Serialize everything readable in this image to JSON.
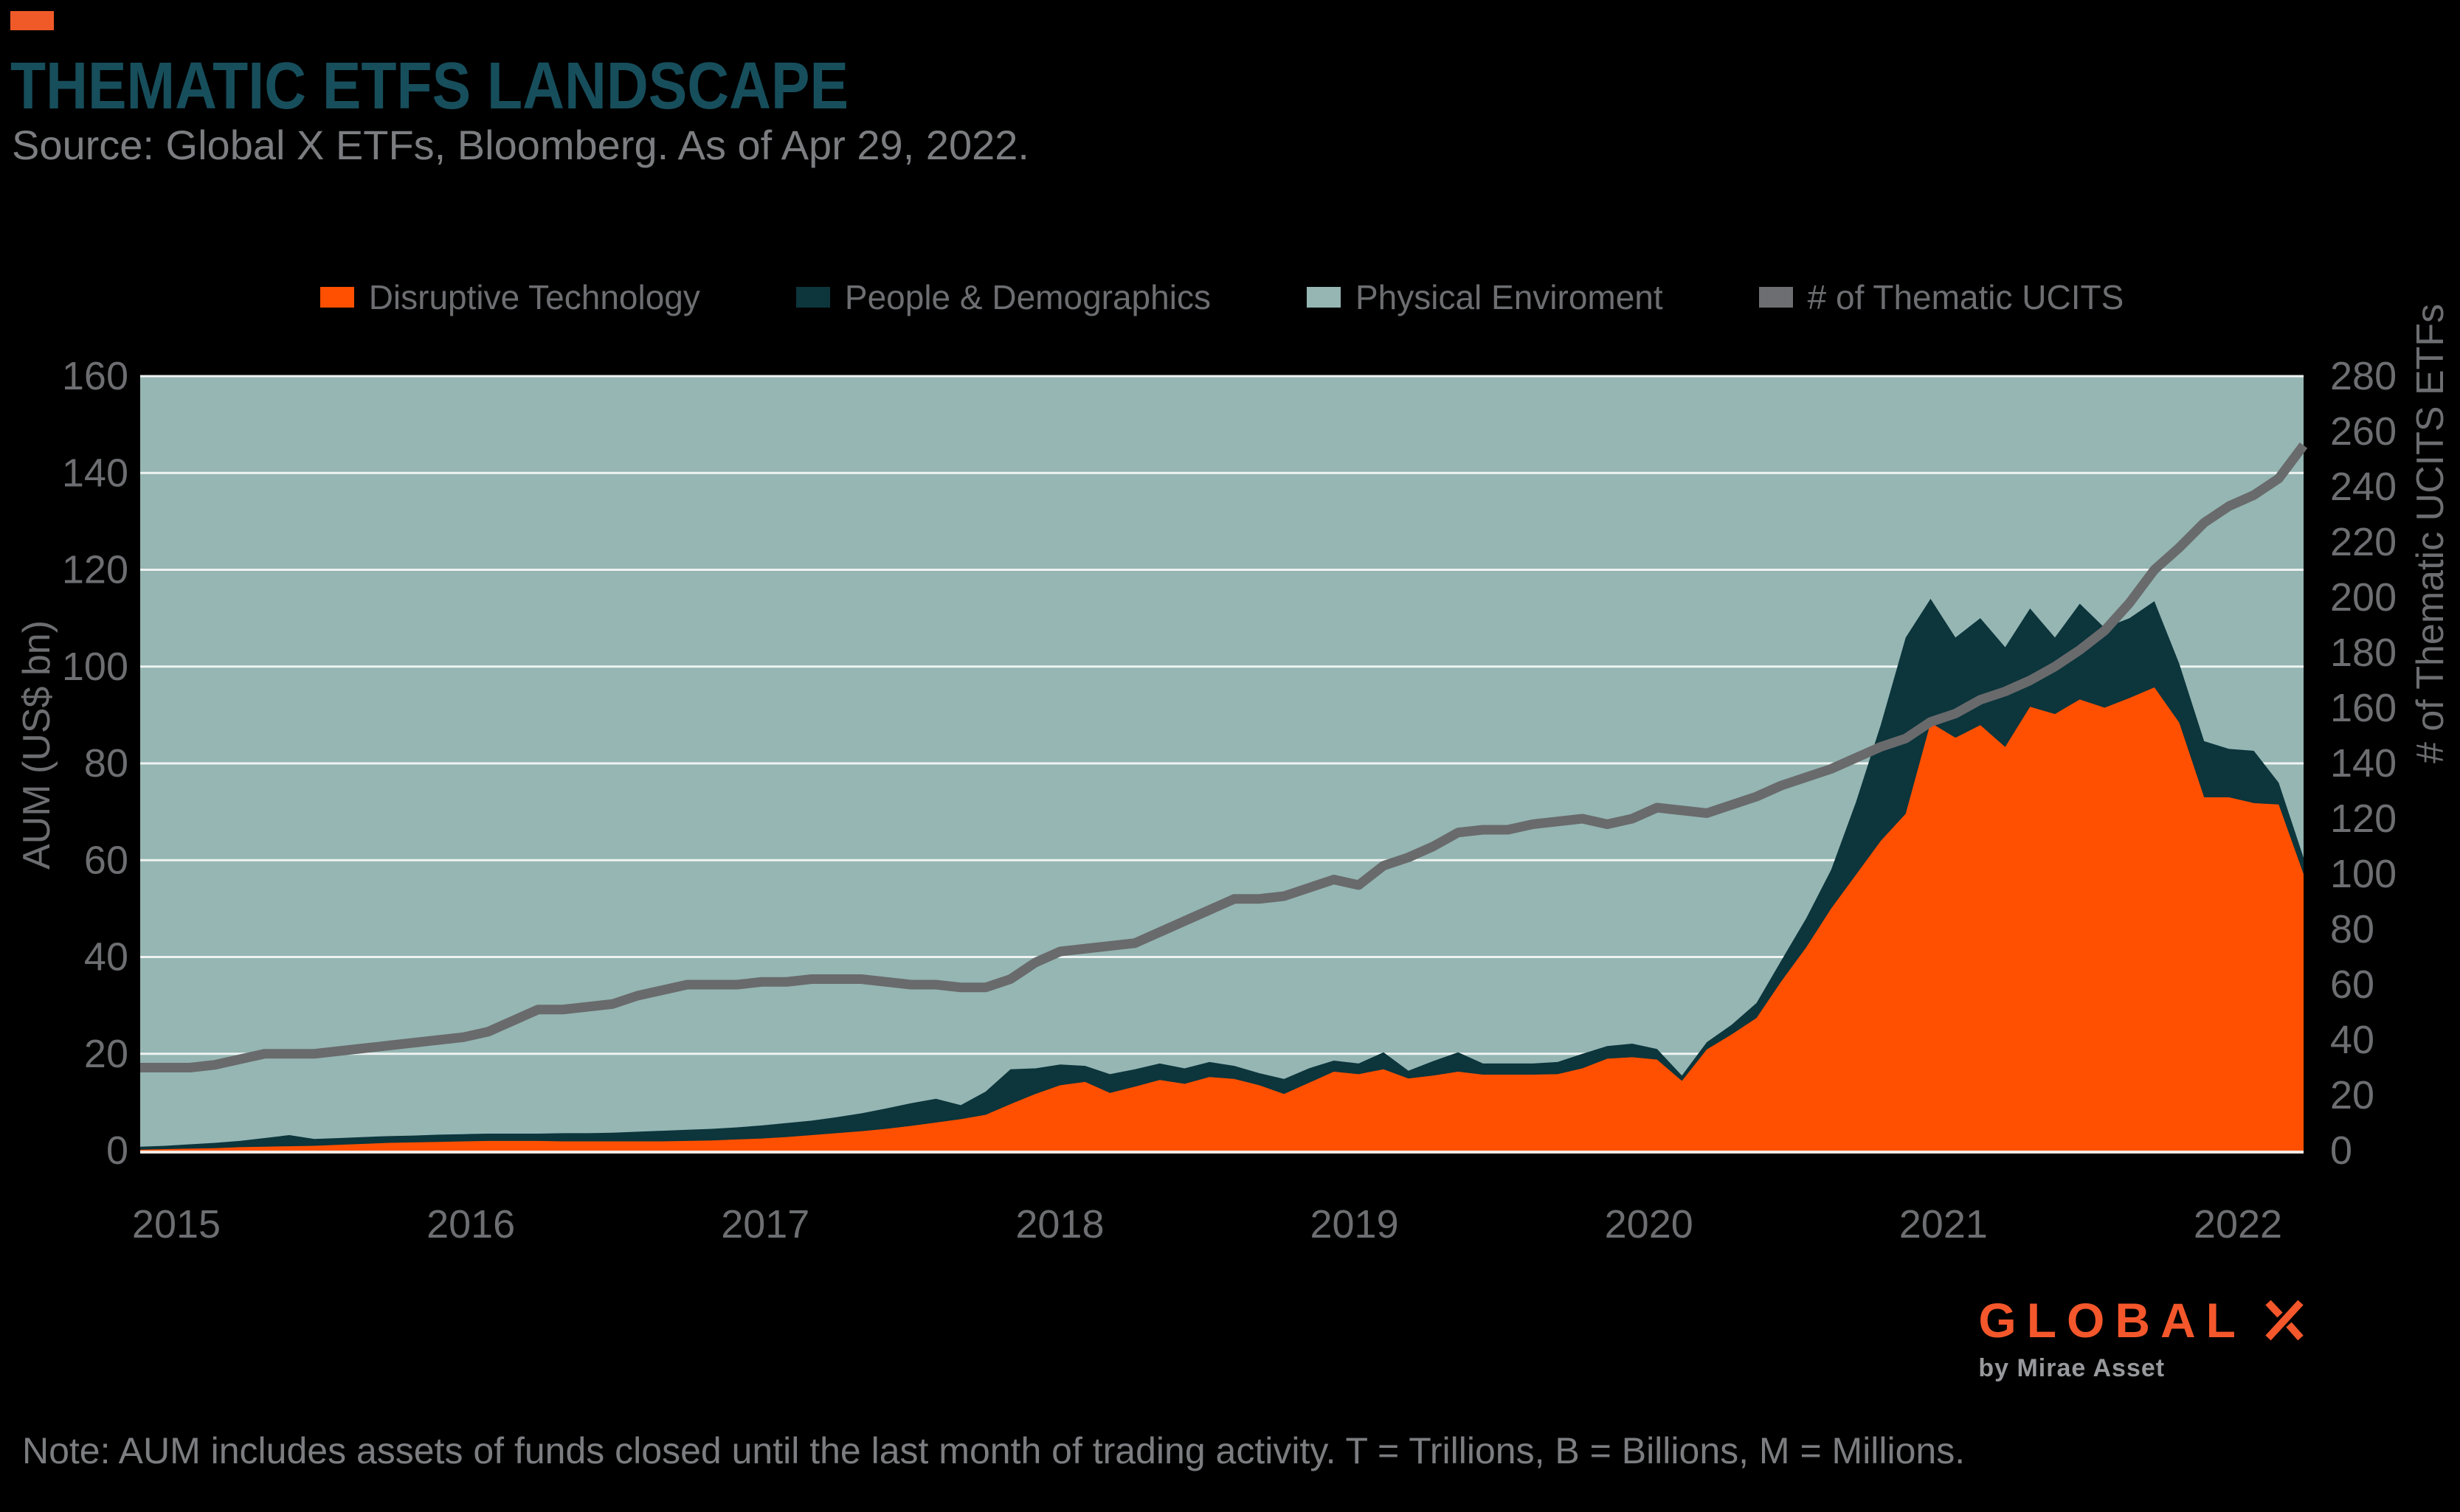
{
  "header": {
    "title": "THEMATIC ETFS LANDSCAPE",
    "source": "Source: Global X ETFs, Bloomberg. As of Apr 29, 2022."
  },
  "legend": {
    "items": [
      {
        "label": "Disruptive Technology",
        "color": "#fe5000"
      },
      {
        "label": "People & Demographics",
        "color": "#0c353c"
      },
      {
        "label": "Physical Enviroment",
        "color": "#95b6b3"
      },
      {
        "label": "# of Thematic UCITS",
        "color": "#6d6e71"
      }
    ]
  },
  "chart_data": {
    "type": "area",
    "title": "THEMATIC ETFS LANDSCAPE",
    "x_start": "2015-01",
    "x_end": "2022-04",
    "frequency": "monthly",
    "x_tick_labels": [
      "2015",
      "2016",
      "2017",
      "2018",
      "2019",
      "2020",
      "2021",
      "2022"
    ],
    "left_axis": {
      "label": "AUM (US$ bn)",
      "min": 0,
      "max": 160,
      "step": 20
    },
    "right_axis": {
      "label": "# of Thematic UCITS ETFs",
      "min": 0,
      "max": 280,
      "step": 20
    },
    "grid": true,
    "legend_position": "top",
    "plot_background_color": "#95b6b3",
    "gridline_color": "#eef3f2",
    "baseline_color": "#f2e8e2",
    "series": [
      {
        "name": "Disruptive Technology",
        "type": "area-stacked",
        "color": "#fe5000",
        "values": [
          0.2,
          0.3,
          0.4,
          0.5,
          0.7,
          0.8,
          0.9,
          1.0,
          1.2,
          1.4,
          1.6,
          1.7,
          1.8,
          1.9,
          2.0,
          2.0,
          2.0,
          1.9,
          1.9,
          1.9,
          1.9,
          1.9,
          2.0,
          2.1,
          2.3,
          2.5,
          2.8,
          3.2,
          3.6,
          4.0,
          4.5,
          5.1,
          5.8,
          6.5,
          7.4,
          9.6,
          11.7,
          13.5,
          14.2,
          11.9,
          13.2,
          14.6,
          13.8,
          15.2,
          14.8,
          13.5,
          11.7,
          14.0,
          16.3,
          15.8,
          16.8,
          14.9,
          15.5,
          16.3,
          15.7,
          15.7,
          15.7,
          15.8,
          17.0,
          19.0,
          19.3,
          18.8,
          14.4,
          20.9,
          24.0,
          27.4,
          35.0,
          42.0,
          50.0,
          57.0,
          64.0,
          69.6,
          88.4,
          85.3,
          87.9,
          83.4,
          91.7,
          90.2,
          93.2,
          91.5,
          93.5,
          95.7,
          88.4,
          73.0,
          73.0,
          71.8,
          71.5,
          57.1
        ]
      },
      {
        "name": "People & Demographics",
        "type": "area-stacked",
        "color": "#0c353c",
        "values": [
          0.6,
          0.7,
          0.9,
          1.1,
          1.3,
          1.8,
          2.3,
          1.4,
          1.4,
          1.4,
          1.4,
          1.4,
          1.5,
          1.5,
          1.5,
          1.5,
          1.5,
          1.7,
          1.7,
          1.8,
          2.0,
          2.2,
          2.3,
          2.4,
          2.5,
          2.7,
          2.9,
          3.0,
          3.3,
          3.7,
          4.2,
          4.7,
          4.9,
          2.9,
          4.8,
          7.2,
          5.3,
          4.3,
          3.3,
          3.9,
          3.6,
          3.4,
          3.2,
          3.1,
          2.7,
          2.5,
          3.1,
          3.0,
          2.3,
          2.2,
          3.5,
          1.6,
          3.0,
          4.0,
          2.3,
          2.3,
          2.3,
          2.5,
          3.0,
          2.6,
          2.8,
          2.2,
          1.1,
          1.5,
          2.0,
          3.1,
          4.3,
          6.0,
          8.0,
          15.0,
          24.0,
          36.4,
          25.6,
          20.7,
          22.1,
          20.6,
          20.3,
          15.8,
          19.8,
          16.5,
          16.5,
          17.8,
          12.2,
          11.6,
          10.0,
          10.8,
          4.5,
          3.4
        ]
      },
      {
        "name": "Physical Enviroment",
        "type": "area-stacked",
        "color": "#95b6b3",
        "values": null,
        "rendering_note": "renders as the full light-teal plot background in the original image"
      }
    ],
    "line_series": {
      "name": "# of Thematic UCITS",
      "axis": "right",
      "color": "#696a6c",
      "values": [
        30,
        30,
        30,
        31,
        33,
        35,
        35,
        35,
        36,
        37,
        38,
        39,
        40,
        41,
        43,
        47,
        51,
        51,
        52,
        53,
        56,
        58,
        60,
        60,
        60,
        61,
        61,
        62,
        62,
        62,
        61,
        60,
        60,
        59,
        59,
        62,
        68,
        72,
        73,
        74,
        75,
        79,
        83,
        87,
        91,
        91,
        92,
        95,
        98,
        96,
        103,
        106,
        110,
        115,
        116,
        116,
        118,
        119,
        120,
        118,
        120,
        124,
        123,
        122,
        125,
        128,
        132,
        135,
        138,
        142,
        146,
        149,
        155,
        158,
        163,
        166,
        170,
        175,
        181,
        188,
        198,
        210,
        218,
        227,
        233,
        237,
        243,
        255
      ]
    }
  },
  "footer": {
    "note": "Note: AUM includes assets of funds closed until the last month of trading activity. T = Trillions, B = Billions, M = Millions.",
    "logo": {
      "text": "GLOBAL",
      "x_mark": "X",
      "byline": "by Mirae Asset"
    }
  }
}
